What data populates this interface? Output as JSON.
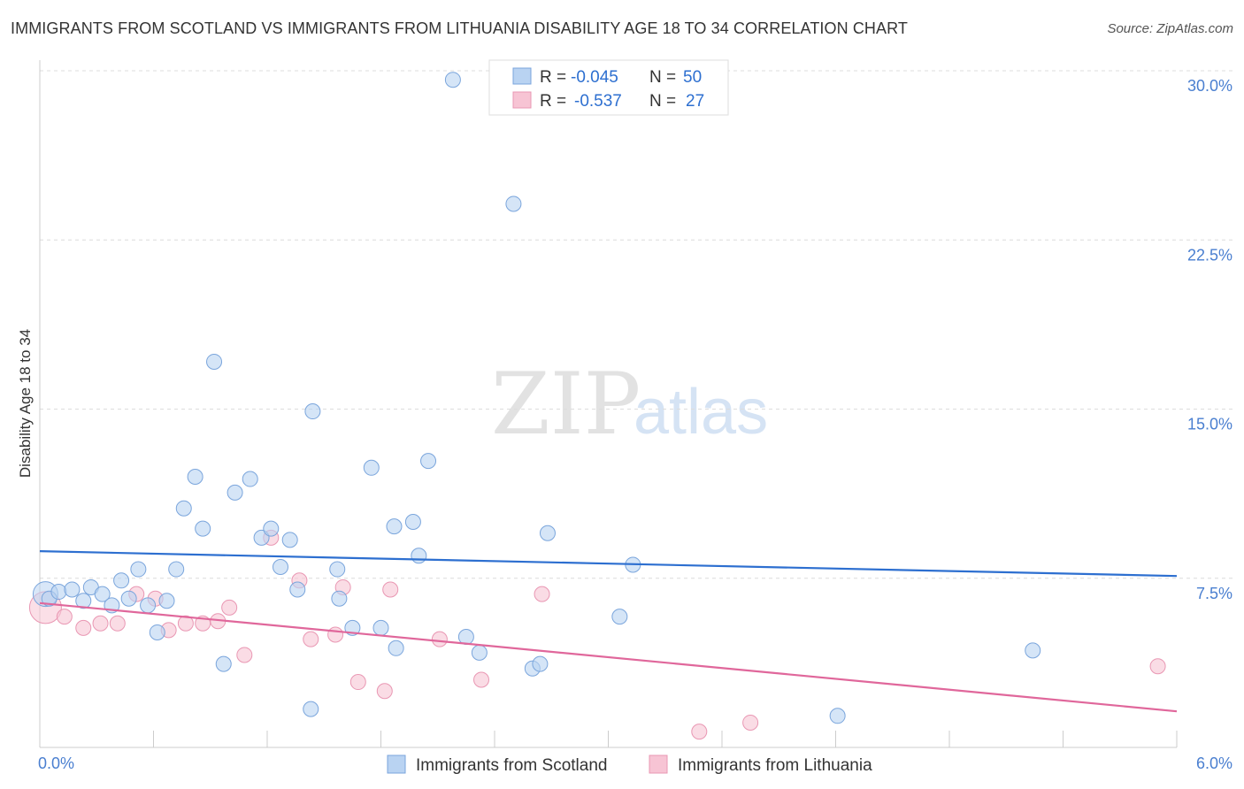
{
  "title": "IMMIGRANTS FROM SCOTLAND VS IMMIGRANTS FROM LITHUANIA DISABILITY AGE 18 TO 34 CORRELATION CHART",
  "source": "Source: ZipAtlas.com",
  "watermark": {
    "zip": "ZIP",
    "atlas": "atlas"
  },
  "legend_box": {
    "rows": [
      {
        "r_label": "R =",
        "r_value": "-0.045",
        "n_label": "N =",
        "n_value": "50"
      },
      {
        "r_label": "R =",
        "r_value": "-0.537",
        "n_label": "N =",
        "n_value": "27"
      }
    ]
  },
  "chart_data": {
    "type": "scatter",
    "title": "IMMIGRANTS FROM SCOTLAND VS IMMIGRANTS FROM LITHUANIA DISABILITY AGE 18 TO 34 CORRELATION CHART",
    "xlabel": "",
    "ylabel": "Disability Age 18 to 34",
    "xlim": [
      0,
      6.0
    ],
    "ylim": [
      0,
      30.0
    ],
    "x_tick_labels": [
      "0.0%",
      "6.0%"
    ],
    "y_ticks": [
      7.5,
      15.0,
      22.5,
      30.0
    ],
    "y_tick_labels": [
      "7.5%",
      "15.0%",
      "22.5%",
      "30.0%"
    ],
    "grid": true,
    "legend_position": "bottom-center",
    "colors": {
      "scotland_fill": "#b9d3f2",
      "scotland_stroke": "#7aa5dc",
      "scotland_line": "#2d6fd0",
      "lithuania_fill": "#f7c4d4",
      "lithuania_stroke": "#e997b3",
      "lithuania_line": "#e0679b",
      "axis_text": "#4a7fd0"
    },
    "series": [
      {
        "name": "Immigrants from Scotland",
        "r": -0.045,
        "n": 50,
        "trend": [
          [
            0,
            8.7
          ],
          [
            6.0,
            7.6
          ]
        ],
        "points": [
          [
            0.03,
            6.8
          ],
          [
            0.05,
            6.6
          ],
          [
            0.1,
            6.9
          ],
          [
            0.17,
            7.0
          ],
          [
            0.23,
            6.5
          ],
          [
            0.27,
            7.1
          ],
          [
            0.33,
            6.8
          ],
          [
            0.38,
            6.3
          ],
          [
            0.43,
            7.4
          ],
          [
            0.47,
            6.6
          ],
          [
            0.52,
            7.9
          ],
          [
            0.57,
            6.3
          ],
          [
            0.62,
            5.1
          ],
          [
            0.67,
            6.5
          ],
          [
            0.72,
            7.9
          ],
          [
            0.76,
            10.6
          ],
          [
            0.82,
            12.0
          ],
          [
            0.86,
            9.7
          ],
          [
            0.92,
            17.1
          ],
          [
            0.97,
            3.7
          ],
          [
            1.03,
            11.3
          ],
          [
            1.11,
            11.9
          ],
          [
            1.17,
            9.3
          ],
          [
            1.22,
            9.7
          ],
          [
            1.27,
            8.0
          ],
          [
            1.32,
            9.2
          ],
          [
            1.36,
            7.0
          ],
          [
            1.43,
            1.7
          ],
          [
            1.44,
            14.9
          ],
          [
            1.57,
            7.9
          ],
          [
            1.58,
            6.6
          ],
          [
            1.65,
            5.3
          ],
          [
            1.75,
            12.4
          ],
          [
            1.8,
            5.3
          ],
          [
            1.88,
            4.4
          ],
          [
            1.87,
            9.8
          ],
          [
            1.97,
            10.0
          ],
          [
            2.0,
            8.5
          ],
          [
            2.05,
            12.7
          ],
          [
            2.18,
            29.6
          ],
          [
            2.25,
            4.9
          ],
          [
            2.32,
            4.2
          ],
          [
            2.5,
            24.1
          ],
          [
            2.6,
            3.5
          ],
          [
            2.64,
            3.7
          ],
          [
            2.68,
            9.5
          ],
          [
            3.06,
            5.8
          ],
          [
            3.13,
            8.1
          ],
          [
            4.21,
            1.4
          ],
          [
            5.24,
            4.3
          ]
        ]
      },
      {
        "name": "Immigrants from Lithuania",
        "r": -0.537,
        "n": 27,
        "trend": [
          [
            0,
            6.4
          ],
          [
            6.0,
            1.6
          ]
        ],
        "points": [
          [
            0.03,
            6.2
          ],
          [
            0.13,
            5.8
          ],
          [
            0.23,
            5.3
          ],
          [
            0.32,
            5.5
          ],
          [
            0.41,
            5.5
          ],
          [
            0.51,
            6.8
          ],
          [
            0.61,
            6.6
          ],
          [
            0.68,
            5.2
          ],
          [
            0.77,
            5.5
          ],
          [
            0.86,
            5.5
          ],
          [
            0.94,
            5.6
          ],
          [
            1.0,
            6.2
          ],
          [
            1.08,
            4.1
          ],
          [
            1.22,
            9.3
          ],
          [
            1.37,
            7.4
          ],
          [
            1.43,
            4.8
          ],
          [
            1.56,
            5.0
          ],
          [
            1.6,
            7.1
          ],
          [
            1.68,
            2.9
          ],
          [
            1.82,
            2.5
          ],
          [
            1.85,
            7.0
          ],
          [
            2.11,
            4.8
          ],
          [
            2.33,
            3.0
          ],
          [
            2.65,
            6.8
          ],
          [
            3.48,
            0.7
          ],
          [
            3.75,
            1.1
          ],
          [
            5.9,
            3.6
          ]
        ]
      }
    ]
  }
}
